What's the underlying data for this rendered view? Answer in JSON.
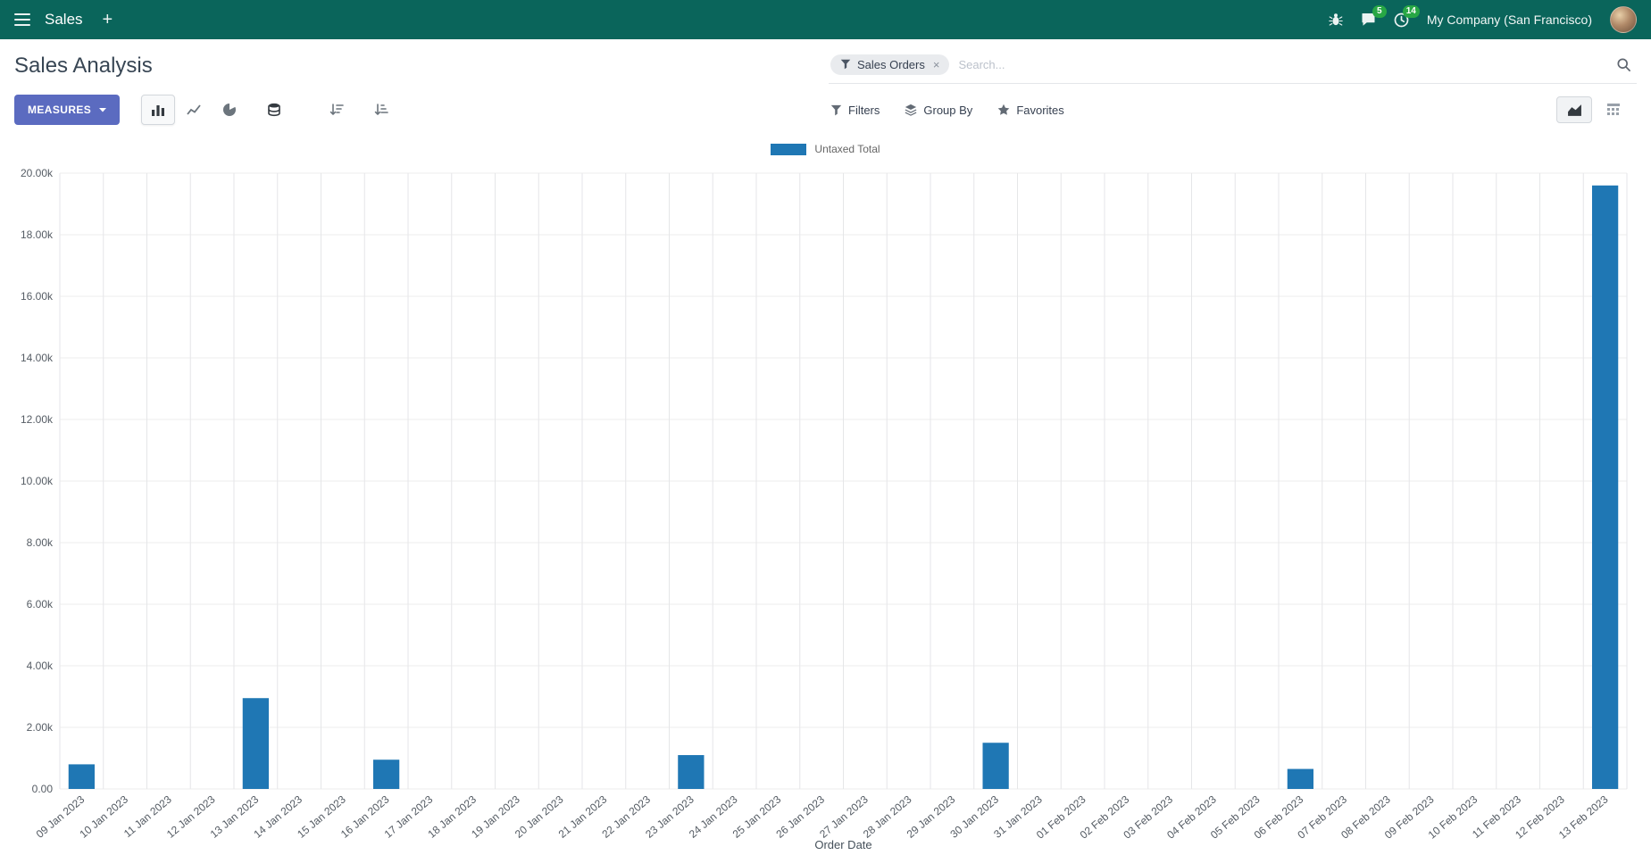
{
  "colors": {
    "navbar_bg": "#0a655b",
    "primary": "#5b6bc0",
    "badge": "#28a745",
    "bar": "#1f77b4"
  },
  "navbar": {
    "app_name": "Sales",
    "plus": "+",
    "messages_badge": "5",
    "activities_badge": "14",
    "company": "My Company (San Francisco)"
  },
  "control_panel": {
    "title": "Sales Analysis",
    "search": {
      "facet": "Sales Orders",
      "facet_remove": "×",
      "placeholder": "Search..."
    },
    "toolbar": {
      "measures_label": "MEASURES",
      "filters_label": "Filters",
      "group_by_label": "Group By",
      "favorites_label": "Favorites"
    }
  },
  "chart_data": {
    "type": "bar",
    "title": "",
    "legend": [
      "Untaxed Total"
    ],
    "series_color": "#1f77b4",
    "xlabel": "Order Date",
    "ylabel": "",
    "ylim": [
      0,
      20000
    ],
    "grid": true,
    "legend_position": "top",
    "categories": [
      "09 Jan 2023",
      "10 Jan 2023",
      "11 Jan 2023",
      "12 Jan 2023",
      "13 Jan 2023",
      "14 Jan 2023",
      "15 Jan 2023",
      "16 Jan 2023",
      "17 Jan 2023",
      "18 Jan 2023",
      "19 Jan 2023",
      "20 Jan 2023",
      "21 Jan 2023",
      "22 Jan 2023",
      "23 Jan 2023",
      "24 Jan 2023",
      "25 Jan 2023",
      "26 Jan 2023",
      "27 Jan 2023",
      "28 Jan 2023",
      "29 Jan 2023",
      "30 Jan 2023",
      "31 Jan 2023",
      "01 Feb 2023",
      "02 Feb 2023",
      "03 Feb 2023",
      "04 Feb 2023",
      "05 Feb 2023",
      "06 Feb 2023",
      "07 Feb 2023",
      "08 Feb 2023",
      "09 Feb 2023",
      "10 Feb 2023",
      "11 Feb 2023",
      "12 Feb 2023",
      "13 Feb 2023"
    ],
    "values": [
      800,
      0,
      0,
      0,
      2950,
      0,
      0,
      950,
      0,
      0,
      0,
      0,
      0,
      0,
      1100,
      0,
      0,
      0,
      0,
      0,
      0,
      1500,
      0,
      0,
      0,
      0,
      0,
      0,
      650,
      0,
      0,
      0,
      0,
      0,
      0,
      19600
    ],
    "y_ticks": [
      {
        "value": 0,
        "label": "0.00"
      },
      {
        "value": 2000,
        "label": "2.00k"
      },
      {
        "value": 4000,
        "label": "4.00k"
      },
      {
        "value": 6000,
        "label": "6.00k"
      },
      {
        "value": 8000,
        "label": "8.00k"
      },
      {
        "value": 10000,
        "label": "10.00k"
      },
      {
        "value": 12000,
        "label": "12.00k"
      },
      {
        "value": 14000,
        "label": "14.00k"
      },
      {
        "value": 16000,
        "label": "16.00k"
      },
      {
        "value": 18000,
        "label": "18.00k"
      },
      {
        "value": 20000,
        "label": "20.00k"
      }
    ]
  }
}
